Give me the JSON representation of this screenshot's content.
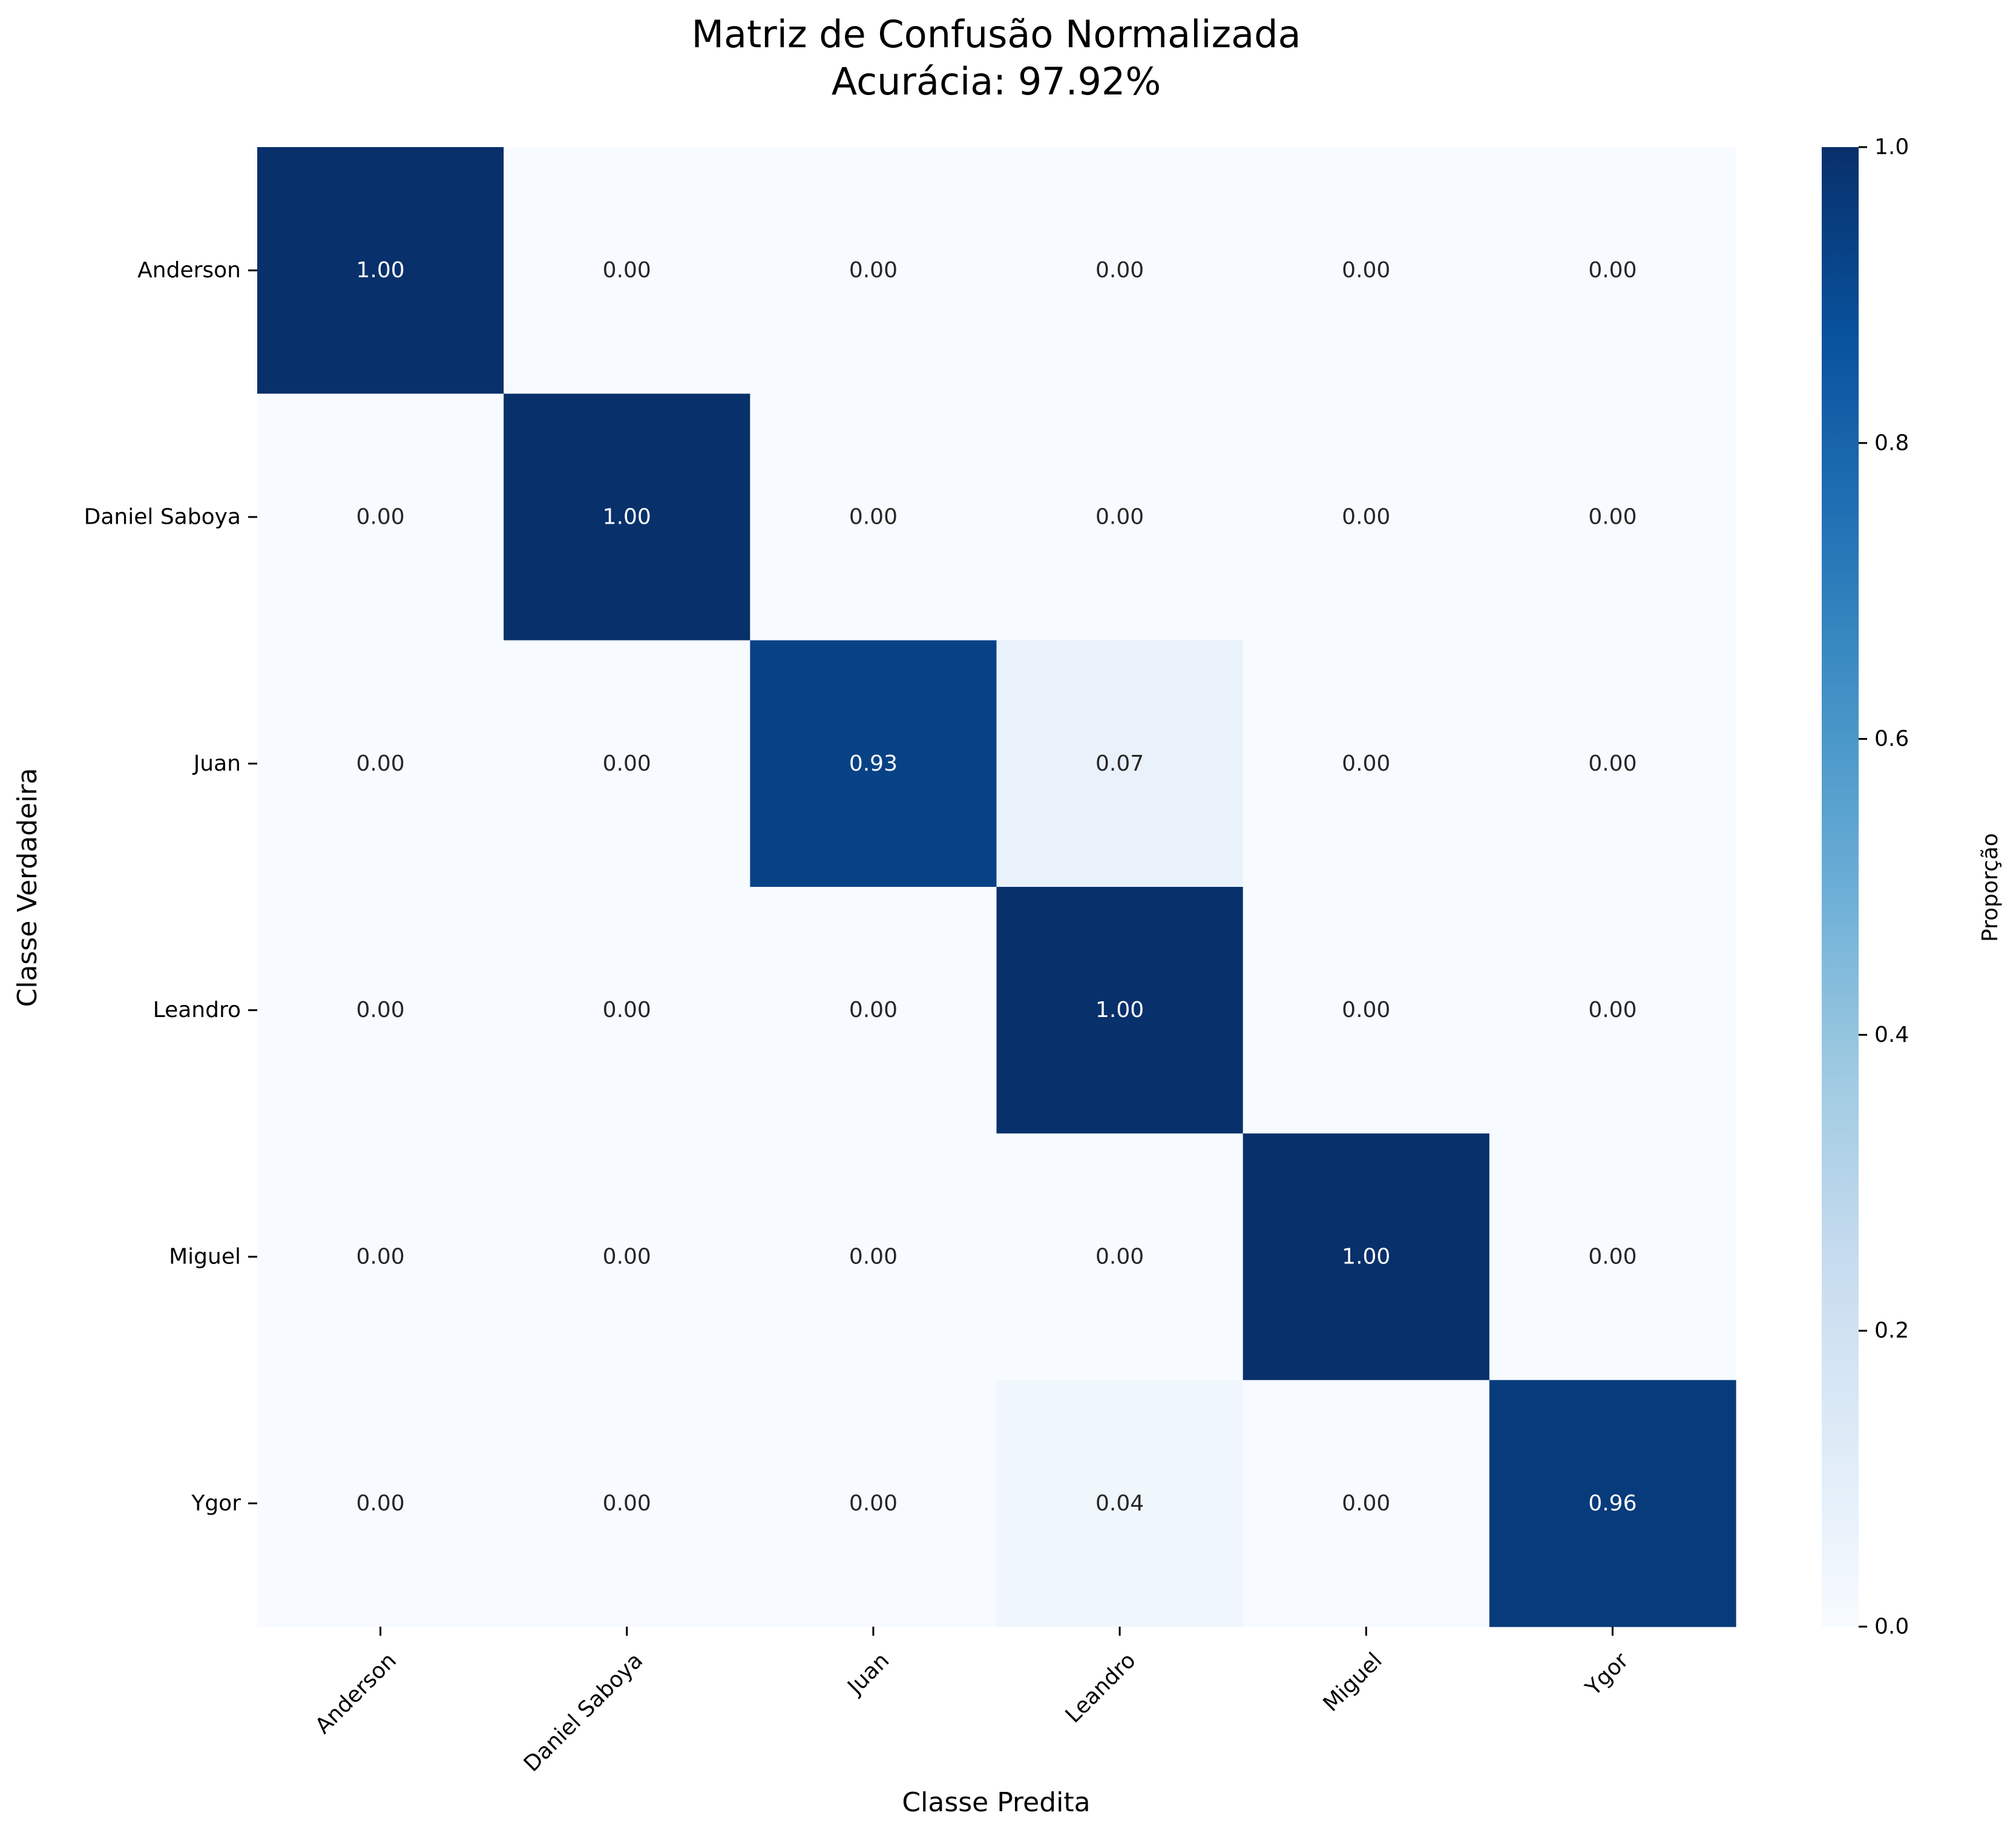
{
  "chart_data": {
    "type": "heatmap",
    "title": "Matriz de Confusão Normalizada",
    "subtitle": "Acurácia: 97.92%",
    "xlabel": "Classe Predita",
    "ylabel": "Classe Verdadeira",
    "x_categories": [
      "Anderson",
      "Daniel Saboya",
      "Juan",
      "Leandro",
      "Miguel",
      "Ygor"
    ],
    "y_categories": [
      "Anderson",
      "Daniel Saboya",
      "Juan",
      "Leandro",
      "Miguel",
      "Ygor"
    ],
    "values": [
      [
        1.0,
        0.0,
        0.0,
        0.0,
        0.0,
        0.0
      ],
      [
        0.0,
        1.0,
        0.0,
        0.0,
        0.0,
        0.0
      ],
      [
        0.0,
        0.0,
        0.93,
        0.07,
        0.0,
        0.0
      ],
      [
        0.0,
        0.0,
        0.0,
        1.0,
        0.0,
        0.0
      ],
      [
        0.0,
        0.0,
        0.0,
        0.0,
        1.0,
        0.0
      ],
      [
        0.0,
        0.0,
        0.0,
        0.04,
        0.0,
        0.96
      ]
    ],
    "colorbar": {
      "label": "Proporção",
      "range": [
        0.0,
        1.0
      ],
      "ticks": [
        0.0,
        0.2,
        0.4,
        0.6,
        0.8,
        1.0
      ],
      "colormap": "Blues"
    },
    "grid": false,
    "annotation_colors": {
      "light": "#ffffff",
      "dark": "#262626"
    }
  }
}
